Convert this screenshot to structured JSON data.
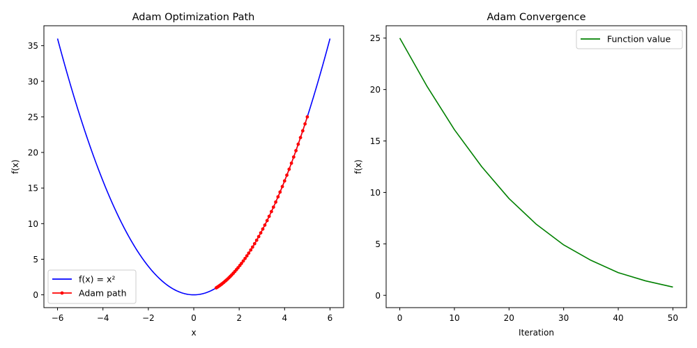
{
  "colors": {
    "curve": "#0000ff",
    "path": "#ff0000",
    "convergence": "#008000",
    "axis": "#000000",
    "legend_border": "#cccccc"
  },
  "chart_data": [
    {
      "type": "line",
      "title": "Adam Optimization Path",
      "xlabel": "x",
      "ylabel": "f(x)",
      "xlim": [
        -6.6,
        6.6
      ],
      "ylim": [
        -1.8,
        37.8
      ],
      "xticks": [
        -6,
        -4,
        -2,
        0,
        2,
        4,
        6
      ],
      "xtick_labels": [
        "−6",
        "−4",
        "−2",
        "0",
        "2",
        "4",
        "6"
      ],
      "yticks": [
        0,
        5,
        10,
        15,
        20,
        25,
        30,
        35
      ],
      "ytick_labels": [
        "0",
        "5",
        "10",
        "15",
        "20",
        "25",
        "30",
        "35"
      ],
      "legend": {
        "location": "lower-left"
      },
      "series": [
        {
          "name": "f(x) = x²",
          "kind": "function",
          "function": "x^2",
          "x_range": [
            -6,
            6
          ],
          "color": "#0000ff",
          "marker": "none"
        },
        {
          "name": "Adam path",
          "kind": "points",
          "color": "#ff0000",
          "marker": "circle",
          "x": [
            5.0,
            4.9,
            4.8,
            4.7,
            4.6,
            4.5,
            4.4,
            4.3,
            4.2,
            4.1,
            4.0,
            3.9,
            3.8,
            3.71,
            3.61,
            3.51,
            3.42,
            3.32,
            3.23,
            3.13,
            3.04,
            2.95,
            2.86,
            2.77,
            2.68,
            2.59,
            2.51,
            2.42,
            2.34,
            2.26,
            2.18,
            2.1,
            2.03,
            1.95,
            1.88,
            1.81,
            1.74,
            1.67,
            1.61,
            1.55,
            1.49,
            1.43,
            1.38,
            1.32,
            1.27,
            1.22,
            1.17,
            1.13,
            1.08,
            1.04,
            0.99
          ]
        }
      ]
    },
    {
      "type": "line",
      "title": "Adam Convergence",
      "xlabel": "Iteration",
      "ylabel": "f(x)",
      "xlim": [
        -2.5,
        52.5
      ],
      "ylim": [
        -1.2,
        26.2
      ],
      "xticks": [
        0,
        10,
        20,
        30,
        40,
        50
      ],
      "xtick_labels": [
        "0",
        "10",
        "20",
        "30",
        "40",
        "50"
      ],
      "yticks": [
        0,
        5,
        10,
        15,
        20,
        25
      ],
      "ytick_labels": [
        "0",
        "5",
        "10",
        "15",
        "20",
        "25"
      ],
      "legend": {
        "location": "upper-right"
      },
      "series": [
        {
          "name": "Function value",
          "color": "#008000",
          "marker": "none",
          "x": [
            0,
            5,
            10,
            15,
            20,
            25,
            30,
            35,
            40,
            45,
            50
          ],
          "values": [
            25.0,
            20.3,
            16.1,
            12.5,
            9.4,
            6.9,
            4.9,
            3.4,
            2.2,
            1.4,
            0.8
          ]
        }
      ]
    }
  ]
}
